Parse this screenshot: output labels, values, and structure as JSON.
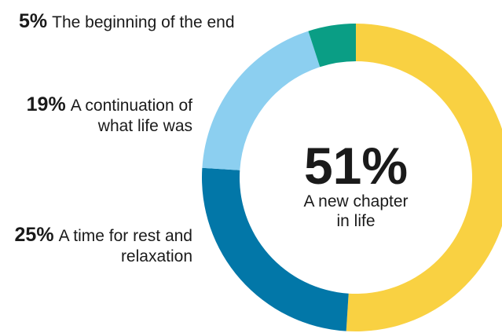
{
  "chart_data": {
    "type": "donut",
    "categories": [
      "A new chapter in life",
      "A time for rest and relaxation",
      "A continuation of what life was",
      "The beginning of the end"
    ],
    "values": [
      51,
      25,
      19,
      5
    ],
    "value_labels": [
      "51%",
      "25%",
      "19%",
      "5%"
    ],
    "colors": [
      "#f9d142",
      "#0277a8",
      "#8ccff0",
      "#0a9e85"
    ]
  }
}
